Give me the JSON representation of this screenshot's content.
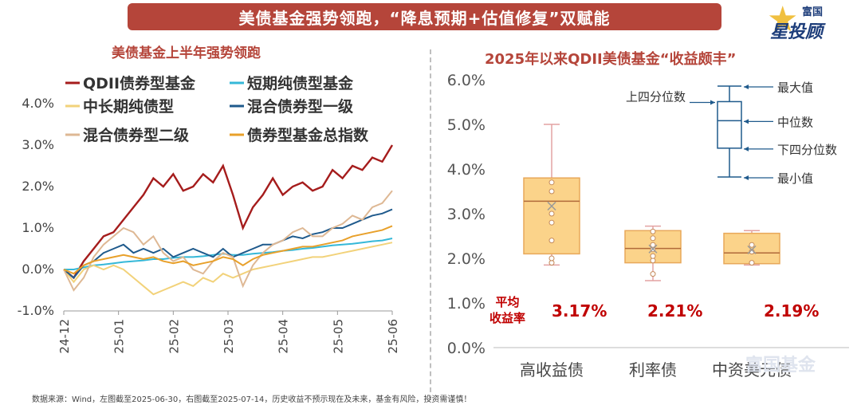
{
  "banner_title": "美债基金强势领跑，“降息预期+估值修复”双赋能",
  "logo": {
    "top": "富国",
    "main": "星投顾"
  },
  "watermark": "富国基金",
  "footer": "数据来源：Wind，左图截至2025-06-30，右图截至2025-07-14，历史收益不预示现在及未来，基金有风险，投资需谨慎！",
  "colors": {
    "accent": "#b5453a",
    "highlight": "#c00000"
  },
  "chart_data": [
    {
      "type": "line",
      "title": "美债基金上半年强势领跑",
      "x_ticks": [
        "24-12",
        "25-01",
        "25-02",
        "25-03",
        "25-04",
        "25-05",
        "25-06"
      ],
      "y_ticks": [
        "4.0%",
        "3.0%",
        "2.0%",
        "1.0%",
        "0.0%",
        "-1.0%"
      ],
      "ylim": [
        -1.0,
        4.0
      ],
      "legend_position": "top",
      "series": [
        {
          "name": "QDII债券型基金",
          "color": "#a51c1c",
          "values": [
            0.0,
            -0.2,
            0.2,
            0.5,
            0.8,
            0.9,
            1.2,
            1.5,
            1.8,
            2.2,
            2.0,
            2.3,
            1.9,
            2.0,
            2.3,
            2.1,
            2.5,
            1.8,
            1.0,
            1.5,
            1.8,
            2.2,
            1.8,
            2.0,
            2.1,
            1.9,
            2.0,
            2.4,
            2.2,
            2.5,
            2.4,
            2.7,
            2.6,
            3.0
          ]
        },
        {
          "name": "短期纯债型基金",
          "color": "#35b8d8",
          "values": [
            0.0,
            0.0,
            0.05,
            0.1,
            0.12,
            0.15,
            0.18,
            0.2,
            0.22,
            0.25,
            0.25,
            0.28,
            0.3,
            0.3,
            0.32,
            0.35,
            0.38,
            0.35,
            0.35,
            0.38,
            0.4,
            0.42,
            0.45,
            0.47,
            0.5,
            0.52,
            0.55,
            0.58,
            0.6,
            0.62,
            0.65,
            0.68,
            0.7,
            0.75
          ]
        },
        {
          "name": "中长期纯债型",
          "color": "#f2d27a",
          "values": [
            0.0,
            -0.3,
            0.0,
            0.1,
            0.0,
            0.1,
            0.0,
            -0.2,
            -0.4,
            -0.6,
            -0.5,
            -0.4,
            -0.3,
            -0.4,
            -0.2,
            -0.3,
            -0.1,
            -0.2,
            -0.1,
            0.0,
            0.05,
            0.1,
            0.15,
            0.2,
            0.25,
            0.3,
            0.3,
            0.35,
            0.4,
            0.45,
            0.5,
            0.55,
            0.6,
            0.65
          ]
        },
        {
          "name": "混合债券型一级",
          "color": "#1f5a8c",
          "values": [
            0.0,
            -0.2,
            0.1,
            0.2,
            0.4,
            0.5,
            0.6,
            0.4,
            0.5,
            0.4,
            0.5,
            0.3,
            0.4,
            0.5,
            0.4,
            0.3,
            0.5,
            0.3,
            0.4,
            0.5,
            0.6,
            0.6,
            0.7,
            0.8,
            0.75,
            0.85,
            0.9,
            1.0,
            1.0,
            1.1,
            1.2,
            1.3,
            1.35,
            1.45
          ]
        },
        {
          "name": "混合债券型二级",
          "color": "#deb894",
          "values": [
            0.0,
            -0.5,
            -0.2,
            0.3,
            0.6,
            0.8,
            1.0,
            0.9,
            0.6,
            0.8,
            0.4,
            0.2,
            0.3,
            0.0,
            -0.1,
            0.2,
            0.4,
            0.3,
            -0.4,
            0.1,
            0.4,
            0.6,
            0.7,
            0.9,
            1.0,
            0.8,
            0.8,
            1.0,
            1.1,
            1.3,
            1.2,
            1.5,
            1.6,
            1.9
          ]
        },
        {
          "name": "债券型基金总指数",
          "color": "#e8a02a",
          "values": [
            0.0,
            -0.1,
            0.1,
            0.2,
            0.25,
            0.3,
            0.35,
            0.3,
            0.25,
            0.3,
            0.2,
            0.15,
            0.2,
            0.1,
            0.15,
            0.2,
            0.3,
            0.25,
            0.1,
            0.25,
            0.35,
            0.4,
            0.45,
            0.5,
            0.55,
            0.55,
            0.6,
            0.65,
            0.7,
            0.8,
            0.85,
            0.9,
            0.95,
            1.05
          ]
        }
      ]
    },
    {
      "type": "box",
      "title": "2025年以来QDII美债基金“收益颇丰”",
      "categories": [
        "高收益债",
        "利率债",
        "中资美元债"
      ],
      "y_ticks": [
        "6.0%",
        "5.0%",
        "4.0%",
        "3.0%",
        "2.0%",
        "1.0%",
        "0.0%"
      ],
      "ylim": [
        0.0,
        6.0
      ],
      "boxes": [
        {
          "min": 1.85,
          "q1": 2.1,
          "median": 3.28,
          "q3": 3.8,
          "max": 5.0,
          "mean": 3.17,
          "points": [
            1.9,
            2.0,
            2.4,
            2.8,
            3.0,
            3.5,
            3.7
          ]
        },
        {
          "min": 1.5,
          "q1": 1.9,
          "median": 2.22,
          "q3": 2.62,
          "max": 2.72,
          "mean": 2.21,
          "points": [
            1.65,
            1.95,
            2.05,
            2.2,
            2.3,
            2.45,
            2.6
          ]
        },
        {
          "min": 1.85,
          "q1": 1.88,
          "median": 2.12,
          "q3": 2.56,
          "max": 2.62,
          "mean": 2.19,
          "points": [
            1.9,
            2.15,
            2.3
          ]
        }
      ],
      "averages": [
        "3.17%",
        "2.21%",
        "2.19%"
      ],
      "average_label": [
        "平均",
        "收益率"
      ],
      "legend_labels": {
        "max": "最大值",
        "q3": "上四分位数",
        "median": "中位数",
        "q1": "下四分位数",
        "min": "最小值"
      },
      "box_fill": "#fbd38a",
      "box_stroke": "#e8a85a",
      "whisker_color": "#e3a2a2"
    }
  ]
}
